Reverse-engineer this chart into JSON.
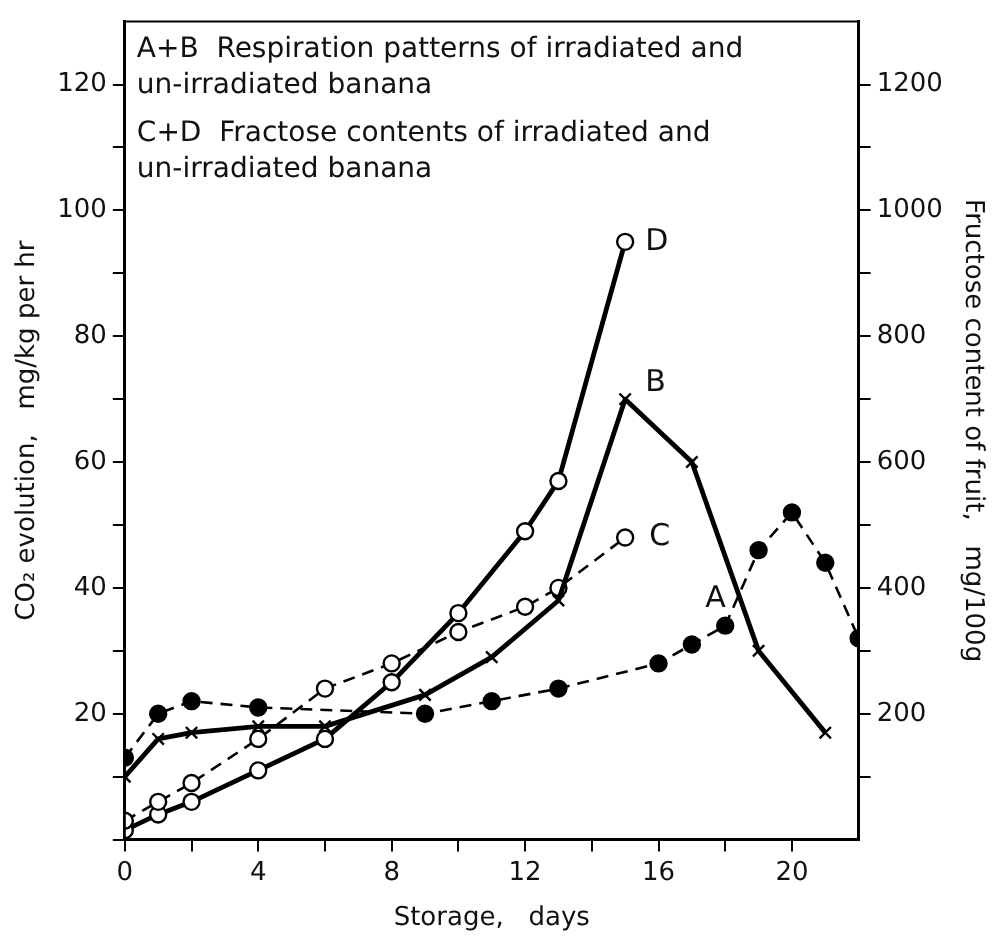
{
  "chart_data": {
    "type": "line",
    "xlabel": "Storage,   days",
    "ylabel": "CO₂ evolution,   mg/kg per hr",
    "y2label": "Fructose content of fruit,   mg/100g",
    "annotations": [
      "A+B  Respiration patterns of irradiated and un-irradiated banana",
      "C+D  Fractose contents of irradiated and un-irradiated banana"
    ],
    "series": [
      {
        "name": "A",
        "color": "#000000",
        "marker": "circle",
        "line_style": "dashed",
        "x": [
          0,
          1,
          2,
          4,
          9,
          11,
          13,
          16,
          17,
          18,
          19,
          20,
          21,
          22
        ],
        "values": [
          13,
          20,
          22,
          21,
          20,
          22,
          24,
          28,
          31,
          34,
          46,
          52,
          44,
          32
        ]
      },
      {
        "name": "B",
        "color": "#000000",
        "marker": "cross",
        "line_style": "solid",
        "x": [
          0,
          1,
          2,
          4,
          6,
          9,
          11,
          13,
          15,
          17,
          19,
          21
        ],
        "values": [
          10,
          16,
          17,
          18,
          18,
          23,
          29,
          38,
          70,
          60,
          30,
          17
        ]
      },
      {
        "name": "C",
        "color": "#000000",
        "marker": "circle",
        "line_style": "dashed",
        "axis": "y2",
        "x": [
          0,
          1,
          2,
          4,
          6,
          8,
          10,
          12,
          13,
          15
        ],
        "values": [
          30,
          60,
          90,
          160,
          240,
          280,
          330,
          370,
          400,
          480
        ]
      },
      {
        "name": "D",
        "color": "#000000",
        "marker": "circle",
        "line_style": "solid",
        "axis": "y2",
        "x": [
          0,
          1,
          2,
          4,
          6,
          8,
          10,
          12,
          13,
          15
        ],
        "values": [
          15,
          40,
          60,
          110,
          160,
          250,
          360,
          490,
          570,
          950
        ]
      }
    ],
    "xlim": [
      0,
      22
    ],
    "xticks": [
      0,
      {
        "value": 2,
        "label": null
      },
      4,
      {
        "value": 6,
        "label": null
      },
      8,
      {
        "value": 10,
        "label": null
      },
      12,
      {
        "value": 14,
        "label": null
      },
      16,
      {
        "value": 18,
        "label": null
      },
      20
    ],
    "ylim": [
      0,
      130
    ],
    "yticks": [
      {
        "value": 0,
        "label": null
      },
      {
        "value": 10,
        "label": null
      },
      20,
      {
        "value": 30,
        "label": null
      },
      40,
      {
        "value": 50,
        "label": null
      },
      60,
      {
        "value": 70,
        "label": null
      },
      80,
      {
        "value": 90,
        "label": null
      },
      100,
      {
        "value": 110,
        "label": null
      },
      120
    ],
    "y2lim": [
      0,
      1300
    ],
    "y2ticks": [
      {
        "value": 100,
        "label": null
      },
      200,
      {
        "value": 300,
        "label": null
      },
      400,
      {
        "value": 500,
        "label": null
      },
      600,
      {
        "value": 700,
        "label": null
      },
      800,
      {
        "value": 900,
        "label": null
      },
      1000,
      {
        "value": 1100,
        "label": null
      },
      1200
    ],
    "grid": false,
    "legend": false
  }
}
